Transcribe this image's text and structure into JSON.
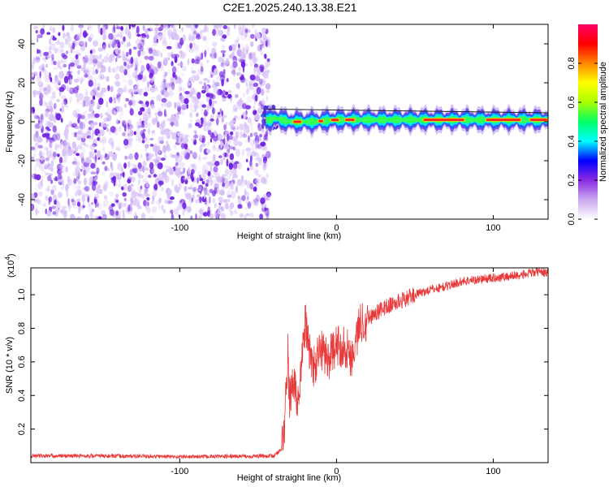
{
  "title": "C2E1.2025.240.13.38.E21",
  "colors": {
    "spectrogram_dot": "#6e1fe0",
    "spectrogram_light": "#d9c4f7",
    "snr_line": "#e83a3a",
    "frame": "#000000"
  },
  "chart_data": [
    {
      "type": "heatmap",
      "name": "spectrogram",
      "xlabel": "Height of straight line (km)",
      "ylabel": "Frequency (Hz)",
      "xlim": [
        -195,
        135
      ],
      "ylim": [
        -50,
        50
      ],
      "xticks": [
        -100,
        0,
        100
      ],
      "xtick_labels": [
        "-100",
        "0",
        "100"
      ],
      "yticks": [
        -40,
        -20,
        0,
        20,
        40
      ],
      "ytick_labels": [
        "-40",
        "-20",
        "0",
        "20",
        "40"
      ],
      "noise_region_x": [
        -195,
        -43
      ],
      "signal_track": {
        "x_start": -45,
        "x_end": 135,
        "frequency_hz": 1,
        "description_points": [
          {
            "x": -40,
            "f": 2
          },
          {
            "x": -30,
            "f": 0
          },
          {
            "x": -15,
            "f": 0
          },
          {
            "x": 0,
            "f": 1
          },
          {
            "x": 40,
            "f": 1
          },
          {
            "x": 100,
            "f": 1
          },
          {
            "x": 135,
            "f": 1
          }
        ]
      },
      "colorbar": {
        "label": "Normalized spectral amplitude",
        "range": [
          0,
          1
        ],
        "ticks": [
          0.0,
          0.2,
          0.4,
          0.6,
          0.8
        ],
        "tick_labels": [
          "0.0",
          "0.2",
          "0.4",
          "0.6",
          "0.8"
        ],
        "colors": [
          "#ffffff",
          "#c9a8f0",
          "#8a2be2",
          "#0000ff",
          "#00ffff",
          "#00ff66",
          "#aaff00",
          "#ffff00",
          "#ff8800",
          "#ff0000",
          "#ff0066"
        ]
      }
    },
    {
      "type": "line",
      "name": "snr",
      "xlabel": "Height of straight line (km)",
      "ylabel": "SNR (10 * v/v)",
      "y_multiplier_label": "(x10",
      "y_multiplier_exp": "4",
      "xlim": [
        -195,
        135
      ],
      "ylim": [
        0,
        11600
      ],
      "xticks": [
        -100,
        0,
        100
      ],
      "xtick_labels": [
        "-100",
        "0",
        "100"
      ],
      "yticks": [
        2000,
        4000,
        6000,
        8000,
        10000
      ],
      "ytick_labels": [
        "0.2",
        "0.4",
        "0.6",
        "0.8",
        "1.0"
      ],
      "series": [
        {
          "name": "SNR",
          "x": [
            -195,
            -150,
            -100,
            -60,
            -40,
            -35,
            -33,
            -31,
            -30,
            -28,
            -25,
            -22,
            -20,
            -15,
            -10,
            -5,
            0,
            5,
            10,
            15,
            20,
            30,
            40,
            50,
            60,
            70,
            80,
            90,
            100,
            110,
            120,
            130,
            135
          ],
          "y": [
            400,
            400,
            350,
            380,
            400,
            800,
            2500,
            6500,
            3500,
            5000,
            3600,
            6000,
            8300,
            5500,
            6800,
            6200,
            6900,
            7000,
            6300,
            8300,
            8600,
            9200,
            9600,
            10000,
            10300,
            10500,
            10800,
            10900,
            11000,
            11100,
            11200,
            11400,
            11300
          ]
        }
      ]
    }
  ]
}
